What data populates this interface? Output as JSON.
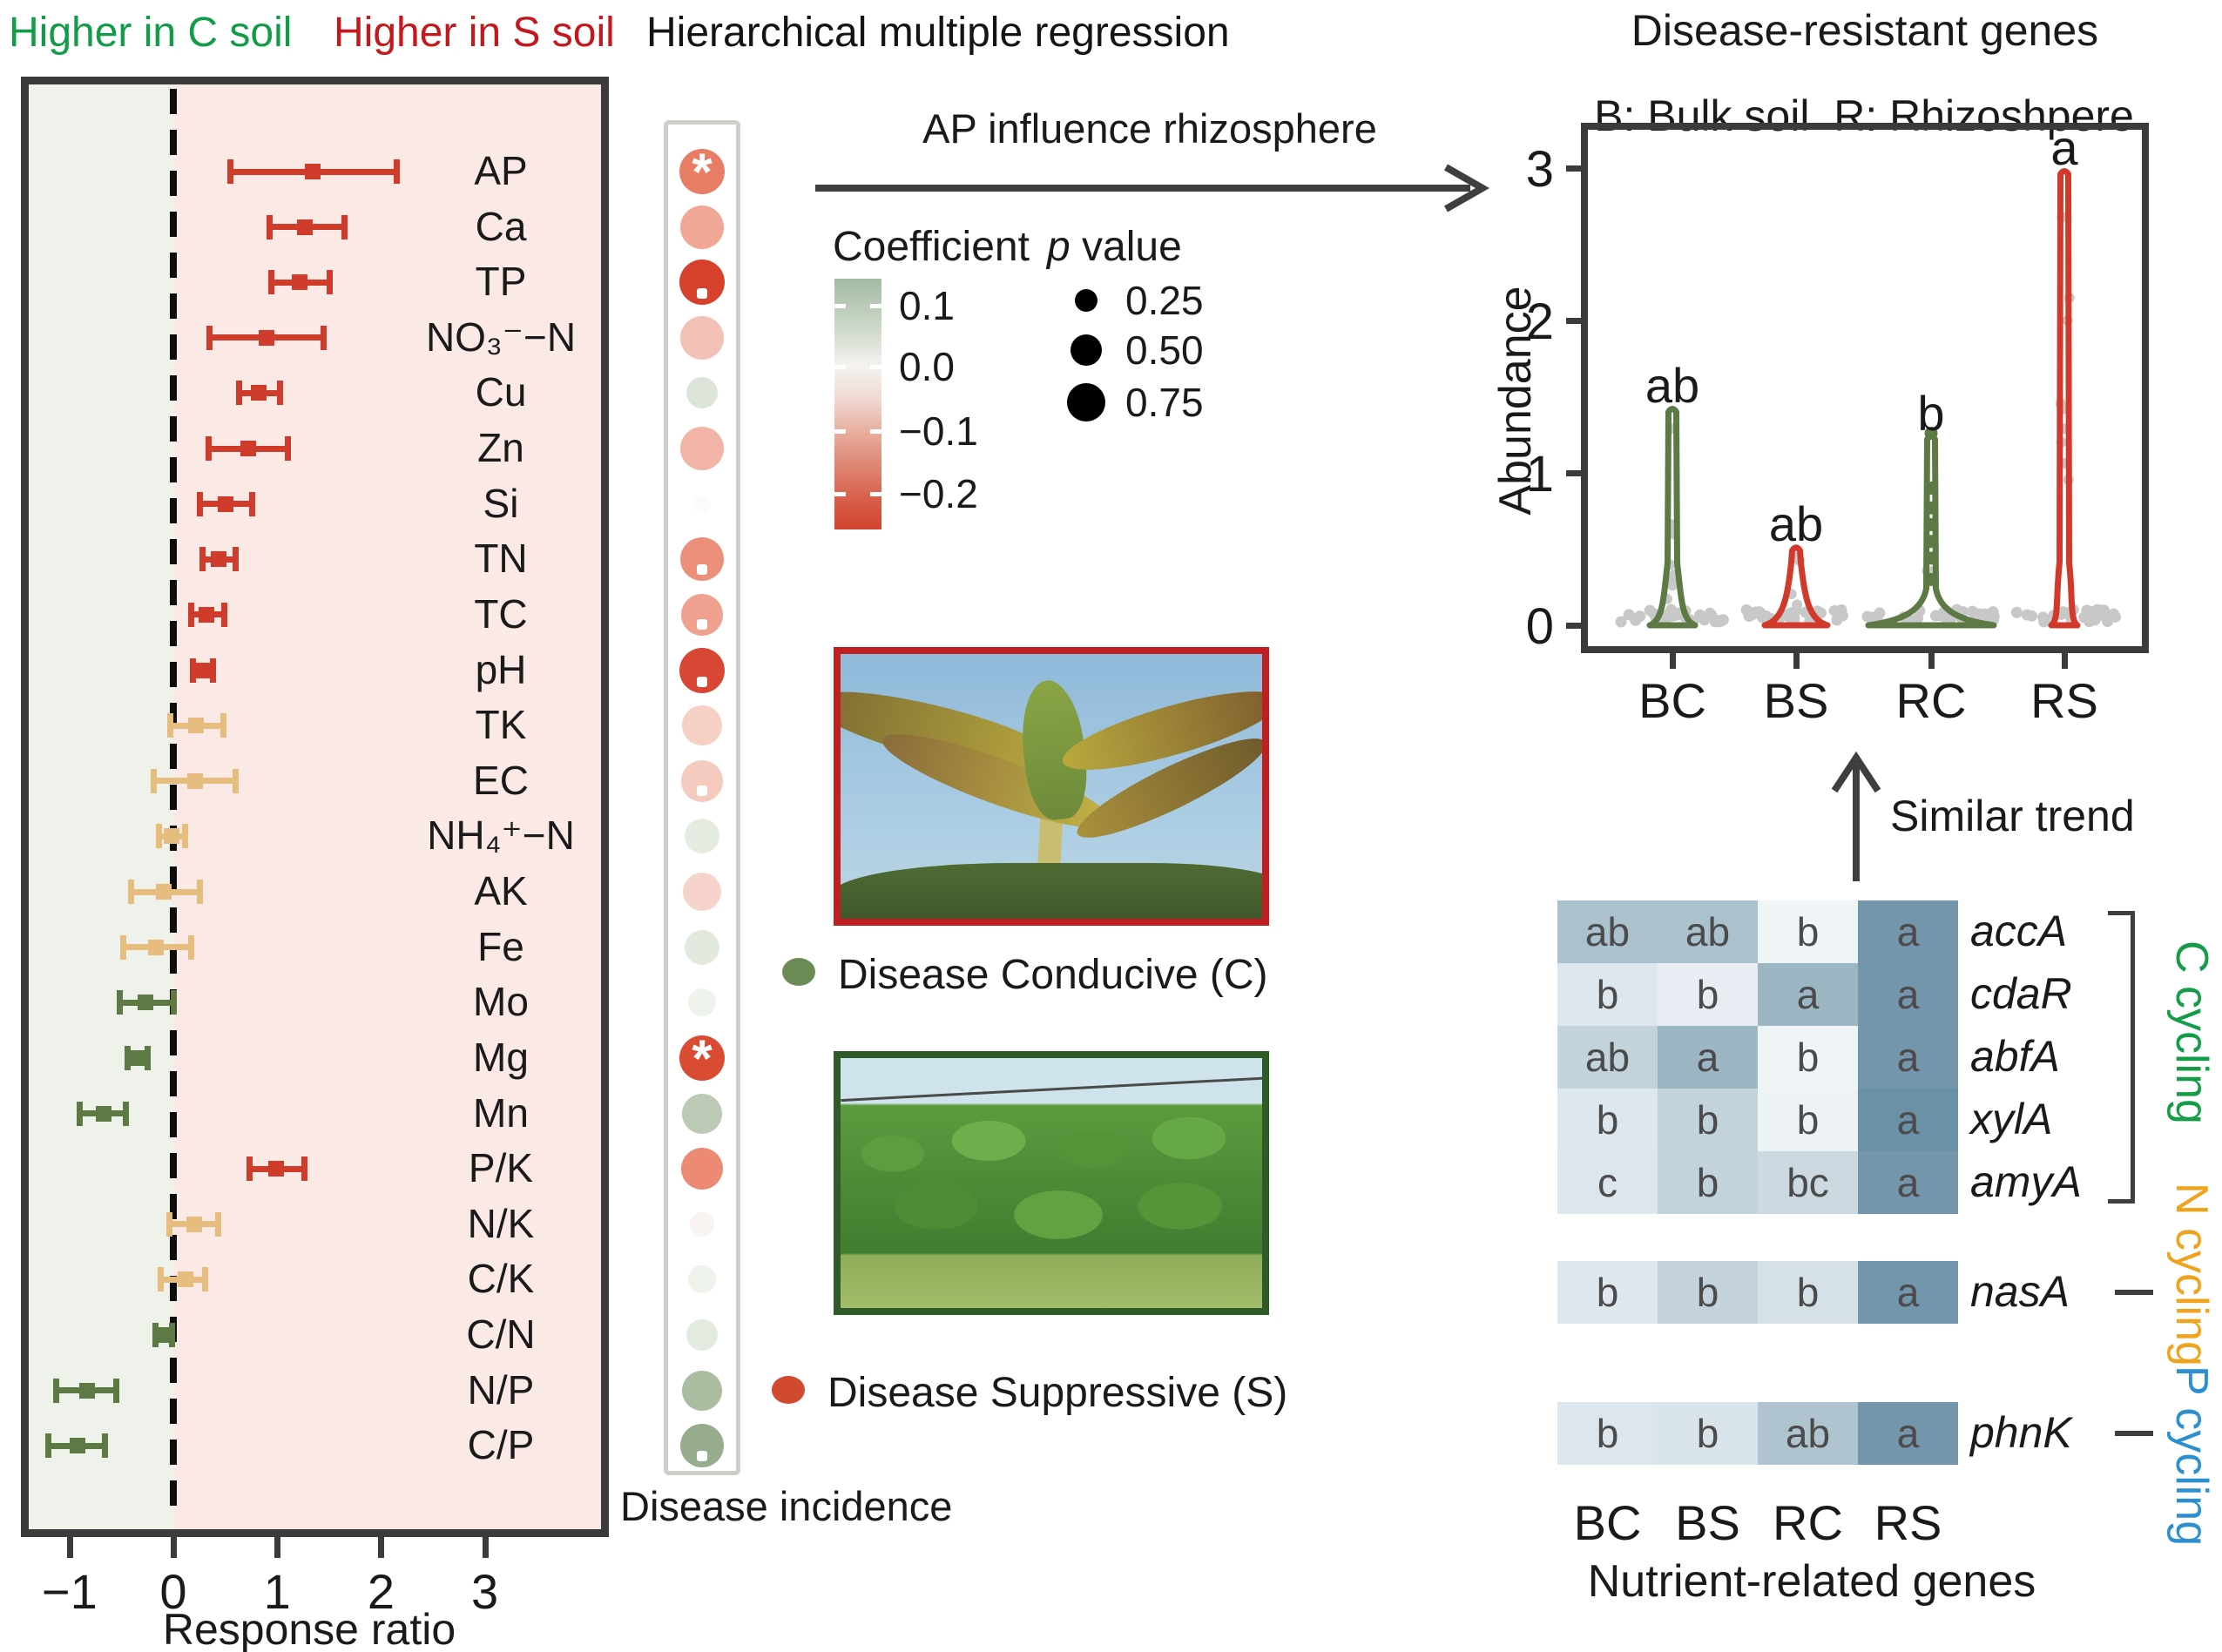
{
  "header": {
    "higher_c": "Higher in C soil",
    "higher_s": "Higher in S soil",
    "regression_title": "Hierarchical multiple regression"
  },
  "top_arrow_label": "AP influence rhizosphere",
  "legend": {
    "coefficient_title": "Coefficient",
    "coefficient_ticks": [
      "0.1",
      "0.0",
      "−0.1",
      "−0.2"
    ],
    "p_italic": "p",
    "p_rest": " value",
    "p_sizes": [
      "0.25",
      "0.50",
      "0.75"
    ]
  },
  "dot_caption": "Disease incidence",
  "similar_trend_label": "Similar trend",
  "photos": [
    {
      "label": "Disease Conducive (C)",
      "bullet_color": "#6c8b54",
      "border_color": "#c11f1f"
    },
    {
      "label": "Disease Suppressive (S)",
      "bullet_color": "#d14a2f",
      "border_color": "#2f5b28"
    }
  ],
  "chart_data": [
    {
      "type": "forest",
      "xlabel": "Response ratio",
      "xticks": [
        -1,
        0,
        1,
        2,
        3
      ],
      "xlim": [
        -1.4,
        4.15
      ],
      "zero_line": 0,
      "bg_left": "#eef2ea",
      "bg_right": "#fbe9e6",
      "group_colors": {
        "S": "#cf3c2c",
        "neutral": "#e6bd7e",
        "C": "#5d7a45"
      },
      "rows": [
        {
          "label": "AP",
          "value": 1.34,
          "lo": 0.55,
          "hi": 2.15,
          "group": "S"
        },
        {
          "label": "Ca",
          "value": 1.27,
          "lo": 0.93,
          "hi": 1.65,
          "group": "S"
        },
        {
          "label": "TP",
          "value": 1.22,
          "lo": 0.94,
          "hi": 1.51,
          "group": "S"
        },
        {
          "label": "NO₃⁻−N",
          "value": 0.9,
          "lo": 0.35,
          "hi": 1.45,
          "group": "S"
        },
        {
          "label": "Cu",
          "value": 0.82,
          "lo": 0.63,
          "hi": 1.03,
          "group": "S"
        },
        {
          "label": "Zn",
          "value": 0.72,
          "lo": 0.34,
          "hi": 1.1,
          "group": "S"
        },
        {
          "label": "Si",
          "value": 0.5,
          "lo": 0.26,
          "hi": 0.76,
          "group": "S"
        },
        {
          "label": "TN",
          "value": 0.44,
          "lo": 0.28,
          "hi": 0.6,
          "group": "S"
        },
        {
          "label": "TC",
          "value": 0.32,
          "lo": 0.17,
          "hi": 0.49,
          "group": "S"
        },
        {
          "label": "pH",
          "value": 0.29,
          "lo": 0.19,
          "hi": 0.38,
          "group": "S"
        },
        {
          "label": "TK",
          "value": 0.22,
          "lo": -0.03,
          "hi": 0.48,
          "group": "neutral"
        },
        {
          "label": "EC",
          "value": 0.21,
          "lo": -0.19,
          "hi": 0.6,
          "group": "neutral"
        },
        {
          "label": "NH₄⁺−N",
          "value": -0.02,
          "lo": -0.14,
          "hi": 0.11,
          "group": "neutral"
        },
        {
          "label": "AK",
          "value": -0.09,
          "lo": -0.41,
          "hi": 0.26,
          "group": "neutral"
        },
        {
          "label": "Fe",
          "value": -0.17,
          "lo": -0.48,
          "hi": 0.17,
          "group": "neutral"
        },
        {
          "label": "Mo",
          "value": -0.27,
          "lo": -0.52,
          "hi": 0.0,
          "group": "C"
        },
        {
          "label": "Mg",
          "value": -0.35,
          "lo": -0.44,
          "hi": -0.25,
          "group": "C"
        },
        {
          "label": "Mn",
          "value": -0.67,
          "lo": -0.9,
          "hi": -0.46,
          "group": "C"
        },
        {
          "label": "P/K",
          "value": 0.99,
          "lo": 0.73,
          "hi": 1.26,
          "group": "S"
        },
        {
          "label": "N/K",
          "value": 0.2,
          "lo": -0.04,
          "hi": 0.43,
          "group": "neutral"
        },
        {
          "label": "C/K",
          "value": 0.12,
          "lo": -0.12,
          "hi": 0.31,
          "group": "neutral"
        },
        {
          "label": "C/N",
          "value": -0.09,
          "lo": -0.17,
          "hi": -0.01,
          "group": "C"
        },
        {
          "label": "N/P",
          "value": -0.83,
          "lo": -1.13,
          "hi": -0.55,
          "group": "C"
        },
        {
          "label": "C/P",
          "value": -0.92,
          "lo": -1.2,
          "hi": -0.66,
          "group": "C"
        }
      ]
    },
    {
      "type": "dot-matrix",
      "caption": "Disease incidence",
      "coefficient_scale": [
        0.1,
        0.0,
        -0.1,
        -0.2
      ],
      "p_value_sizes": [
        0.25,
        0.5,
        0.75
      ],
      "dots": [
        {
          "row": "AP",
          "color": "#e87d66",
          "r": 26,
          "mark": "*"
        },
        {
          "row": "Ca",
          "color": "#f0a795",
          "r": 25,
          "mark": ""
        },
        {
          "row": "TP",
          "color": "#d7402d",
          "r": 26,
          "mark": "."
        },
        {
          "row": "NO3-N",
          "color": "#f3c1b6",
          "r": 25,
          "mark": ""
        },
        {
          "row": "Cu",
          "color": "#dde5da",
          "r": 18,
          "mark": ""
        },
        {
          "row": "Zn",
          "color": "#f2b4a6",
          "r": 25,
          "mark": ""
        },
        {
          "row": "Si",
          "color": "#fafcfa",
          "r": 10,
          "mark": ""
        },
        {
          "row": "TN",
          "color": "#eb8f7b",
          "r": 25,
          "mark": "."
        },
        {
          "row": "TC",
          "color": "#efa08e",
          "r": 24,
          "mark": "."
        },
        {
          "row": "pH",
          "color": "#d84634",
          "r": 26,
          "mark": "."
        },
        {
          "row": "TK",
          "color": "#f6cfc5",
          "r": 23,
          "mark": ""
        },
        {
          "row": "EC",
          "color": "#f5cabf",
          "r": 24,
          "mark": "."
        },
        {
          "row": "NH4-N",
          "color": "#e4ebe1",
          "r": 20,
          "mark": ""
        },
        {
          "row": "AK",
          "color": "#f7d4cb",
          "r": 22,
          "mark": ""
        },
        {
          "row": "Fe",
          "color": "#e2e9df",
          "r": 20,
          "mark": ""
        },
        {
          "row": "Mo",
          "color": "#eef3ec",
          "r": 16,
          "mark": ""
        },
        {
          "row": "Mg",
          "color": "#d94b33",
          "r": 26,
          "mark": "*"
        },
        {
          "row": "Mn",
          "color": "#bcc9b4",
          "r": 23,
          "mark": ""
        },
        {
          "row": "P/K",
          "color": "#ed8a74",
          "r": 24,
          "mark": ""
        },
        {
          "row": "N/K",
          "color": "#f9f4f1",
          "r": 14,
          "mark": ""
        },
        {
          "row": "C/K",
          "color": "#edf2ea",
          "r": 16,
          "mark": ""
        },
        {
          "row": "C/N",
          "color": "#e3eae0",
          "r": 18,
          "mark": ""
        },
        {
          "row": "N/P",
          "color": "#aabda1",
          "r": 23,
          "mark": ""
        },
        {
          "row": "C/P",
          "color": "#97ac8c",
          "r": 25,
          "mark": "."
        }
      ]
    },
    {
      "type": "violin",
      "title": "Disease-resistant genes",
      "subtitle": "B: Bulk soil  R: Rhizoshpere",
      "ylabel": "Abundance",
      "yticks": [
        0,
        1,
        2,
        3
      ],
      "ylim": [
        0,
        3.3
      ],
      "categories": [
        "BC",
        "BS",
        "RC",
        "RS"
      ],
      "point_color": "#c8c8c8",
      "series": [
        {
          "name": "BC",
          "color": "#5d7a45",
          "max": 1.44,
          "letter": "ab",
          "base_halfwidth": 26
        },
        {
          "name": "BS",
          "color": "#d0392b",
          "max": 0.53,
          "letter": "ab",
          "base_halfwidth": 36
        },
        {
          "name": "RC",
          "color": "#5d7a45",
          "max": 1.26,
          "letter": "b",
          "base_halfwidth": 72,
          "beads": [
            0.3,
            0.44,
            0.55,
            0.66,
            0.77,
            0.9,
            1.26
          ]
        },
        {
          "name": "RS",
          "color": "#d0392b",
          "max": 3.0,
          "letter": "a",
          "base_halfwidth": 15
        }
      ]
    },
    {
      "type": "heatmap",
      "columns": [
        "BC",
        "BS",
        "RC",
        "RS"
      ],
      "footer": "Nutrient-related genes",
      "letter_color": "#4b4b4b",
      "groups": [
        {
          "name": "C cycling",
          "color": "#149c49",
          "bracket": true,
          "rows": [
            {
              "gene": "accA",
              "letters": [
                "ab",
                "ab",
                "b",
                "a"
              ],
              "shades": [
                "#abc1ce",
                "#abc1ce",
                "#eff4f7",
                "#7496ab"
              ]
            },
            {
              "gene": "cdaR",
              "letters": [
                "b",
                "b",
                "a",
                "a"
              ],
              "shades": [
                "#dde7ed",
                "#e7edf2",
                "#9db6c4",
                "#7496ab"
              ]
            },
            {
              "gene": "abfA",
              "letters": [
                "ab",
                "a",
                "b",
                "a"
              ],
              "shades": [
                "#c3d3dc",
                "#9db6c4",
                "#eff4f7",
                "#7496ab"
              ]
            },
            {
              "gene": "xylA",
              "letters": [
                "b",
                "b",
                "b",
                "a"
              ],
              "shades": [
                "#dde7ed",
                "#c3d3dc",
                "#edf2f5",
                "#6b91a7"
              ]
            },
            {
              "gene": "amyA",
              "letters": [
                "c",
                "b",
                "bc",
                "a"
              ],
              "shades": [
                "#dce6ec",
                "#c3d3dc",
                "#ccd9e1",
                "#7496ab"
              ]
            }
          ]
        },
        {
          "name": "N cycling",
          "color": "#f0a31c",
          "rows": [
            {
              "gene": "nasA",
              "letters": [
                "b",
                "b",
                "b",
                "a"
              ],
              "shades": [
                "#dfe8ee",
                "#c3d2db",
                "#d5e0e7",
                "#7296ac"
              ]
            }
          ]
        },
        {
          "name": "P cycling",
          "color": "#2b8fd0",
          "rows": [
            {
              "gene": "phnK",
              "letters": [
                "b",
                "b",
                "ab",
                "a"
              ],
              "shades": [
                "#dce6ec",
                "#d8e3ea",
                "#b0c4d0",
                "#7496ab"
              ]
            }
          ]
        }
      ]
    }
  ]
}
